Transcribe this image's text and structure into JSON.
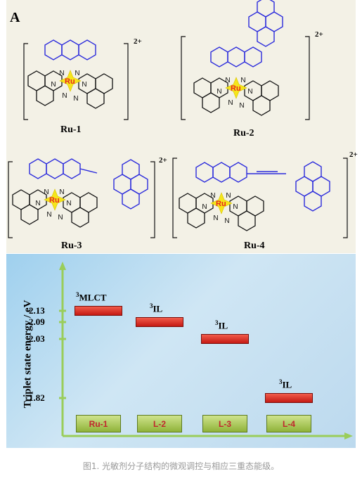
{
  "panel_letter": "A",
  "charge": "2+",
  "metal": "Ru",
  "donor_atom": "N",
  "molecules": [
    "Ru-1",
    "Ru-2",
    "Ru-3",
    "Ru-4"
  ],
  "colors": {
    "ligand_blue": "#2b2bdc",
    "ligand_black": "#111111",
    "metal_red": "#e8261e",
    "core_yellow": "#f5e51b"
  },
  "chart_data": {
    "type": "bar",
    "ylabel": "Triplet state energy  / eV",
    "y_ticks": [
      "2.13",
      "2.09",
      "2.03",
      "1.82"
    ],
    "categories": [
      "Ru-1",
      "L-2",
      "L-3",
      "L-4"
    ],
    "values": [
      2.13,
      2.09,
      2.03,
      1.82
    ],
    "state_labels": [
      {
        "sup": "3",
        "text": "MLCT"
      },
      {
        "sup": "3",
        "text": "IL"
      },
      {
        "sup": "3",
        "text": "IL"
      },
      {
        "sup": "3",
        "text": "IL"
      }
    ]
  },
  "caption": "图1. 光敏剂分子结构的微观调控与相应三重态能级。"
}
